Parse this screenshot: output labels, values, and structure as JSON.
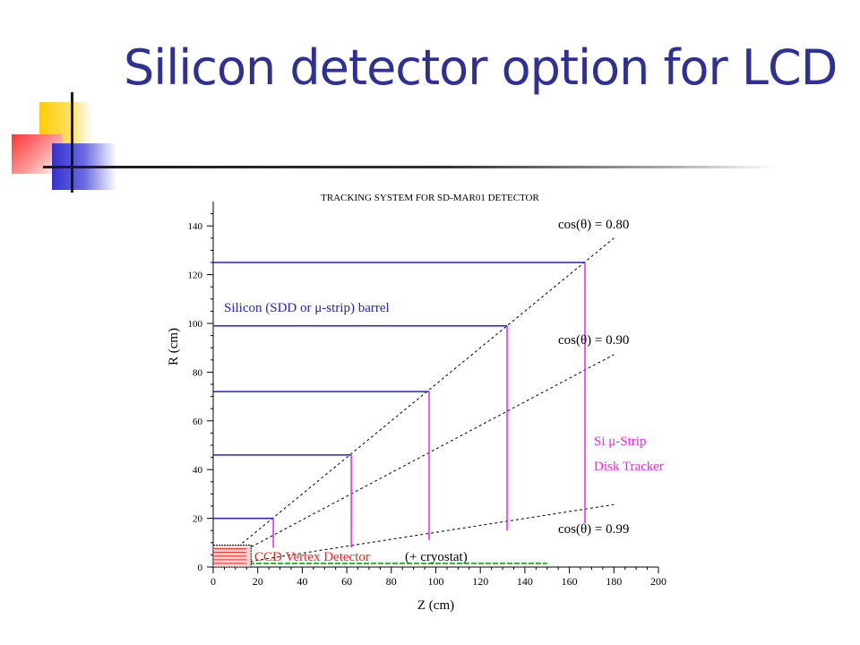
{
  "slide": {
    "title": "Silicon detector option for LCD",
    "colors": {
      "title": "#2e3192",
      "deco_yellow": "#ffcc00",
      "deco_red": "#ff3333",
      "deco_blue": "#3333cc",
      "rule": "#1a1a1a"
    }
  },
  "chart_data": {
    "type": "line",
    "title": "TRACKING SYSTEM FOR SD-MAR01 DETECTOR",
    "xlabel": "Z (cm)",
    "ylabel": "R (cm)",
    "xlim": [
      0,
      200
    ],
    "ylim": [
      0,
      150
    ],
    "x_ticks": [
      0,
      20,
      40,
      60,
      80,
      100,
      120,
      140,
      160,
      180,
      200
    ],
    "y_ticks": [
      0,
      20,
      40,
      60,
      80,
      100,
      120,
      140
    ],
    "grid": false,
    "barrel_layers": [
      {
        "r": 20,
        "z_max": 27
      },
      {
        "r": 46,
        "z_max": 62
      },
      {
        "r": 72,
        "z_max": 97
      },
      {
        "r": 99,
        "z_max": 132
      },
      {
        "r": 125,
        "z_max": 167
      }
    ],
    "disks": [
      {
        "z": 27,
        "r_min": 8,
        "r_max": 20
      },
      {
        "z": 62,
        "r_min": 8,
        "r_max": 46
      },
      {
        "z": 97,
        "r_min": 11,
        "r_max": 72
      },
      {
        "z": 132,
        "r_min": 15,
        "r_max": 99
      },
      {
        "z": 167,
        "r_min": 18,
        "r_max": 125
      }
    ],
    "cos_theta_lines": [
      {
        "label": "cos(θ) = 0.80",
        "cos": 0.8,
        "z_end": 180
      },
      {
        "label": "cos(θ) = 0.90",
        "cos": 0.9,
        "z_end": 180
      },
      {
        "label": "cos(θ) = 0.99",
        "cos": 0.99,
        "z_end": 180
      }
    ],
    "beampipe": {
      "r": 1.5,
      "z_min": 0,
      "z_max": 150
    },
    "vertex_region": {
      "z_min": 0,
      "z_max": 17,
      "r_min": 0,
      "r_max": 9
    },
    "annotations": {
      "barrel": "Silicon (SDD or μ-strip) barrel",
      "disk_line1": "Si μ-Strip",
      "disk_line2": "Disk Tracker",
      "vertex": "CCD Vertex Detector",
      "cryostat": "(+ cryostat)"
    },
    "colors": {
      "barrel": "#2222cc",
      "disk": "#ee22ee",
      "vertex": "#ee2222",
      "beampipe": "#22bb22",
      "cone": "#000000"
    }
  }
}
